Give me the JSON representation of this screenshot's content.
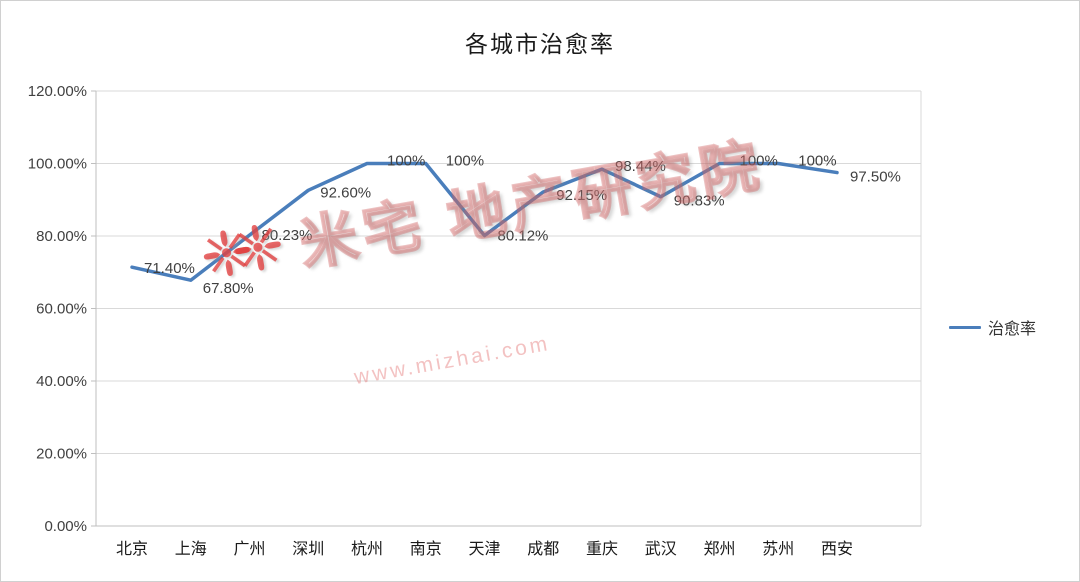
{
  "watermark": {
    "brand_text": "米宅 地产研究院",
    "url": "www.mizhai.com"
  },
  "colors": {
    "line": "#4a7ebb",
    "grid": "#d9d9d9",
    "axis": "#bfbfbf",
    "text": "#404040"
  },
  "chart_data": {
    "type": "line",
    "title": "各城市治愈率",
    "categories": [
      "北京",
      "上海",
      "广州",
      "深圳",
      "杭州",
      "南京",
      "天津",
      "成都",
      "重庆",
      "武汉",
      "郑州",
      "苏州",
      "西安"
    ],
    "series": [
      {
        "name": "治愈率",
        "values": [
          71.4,
          67.8,
          80.23,
          92.6,
          100,
          100,
          80.12,
          92.15,
          98.44,
          90.83,
          100,
          100,
          97.5
        ]
      }
    ],
    "value_labels": [
      "71.40%",
      "67.80%",
      "80.23%",
      "92.60%",
      "100%",
      "100%",
      "80.12%",
      "92.15%",
      "98.44%",
      "90.83%",
      "100%",
      "100%",
      "97.50%"
    ],
    "ylim": [
      0,
      120
    ],
    "ytick_step": 20,
    "ytick_labels": [
      "0.00%",
      "20.00%",
      "40.00%",
      "60.00%",
      "80.00%",
      "100.00%",
      "120.00%"
    ],
    "grid": "horizontal",
    "legend_position": "right"
  }
}
